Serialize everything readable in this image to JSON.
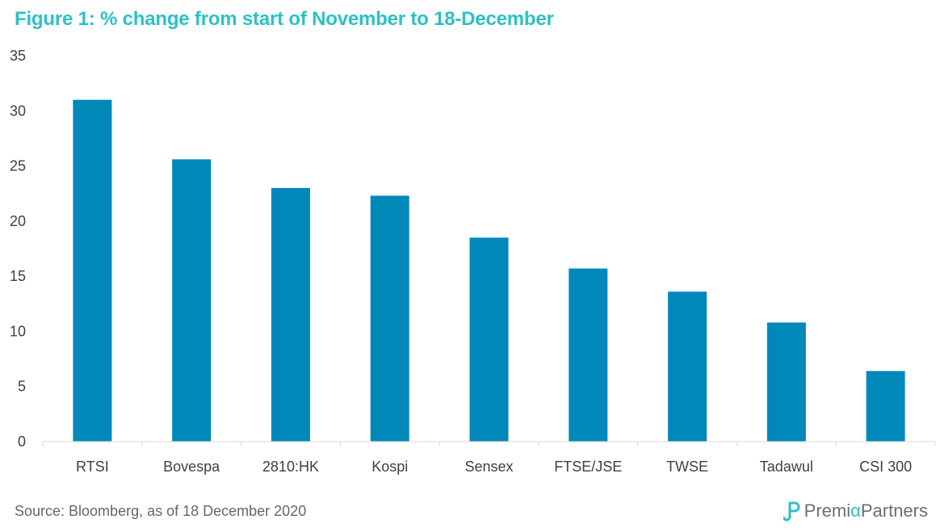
{
  "chart_data": {
    "type": "bar",
    "title": "Figure 1: % change from start of November to 18-December",
    "categories": [
      "RTSI",
      "Bovespa",
      "2810:HK",
      "Kospi",
      "Sensex",
      "FTSE/JSE",
      "TWSE",
      "Tadawul",
      "CSI 300"
    ],
    "values": [
      31.0,
      25.6,
      23.0,
      22.3,
      18.5,
      15.7,
      13.6,
      10.8,
      6.4
    ],
    "ylim": [
      0,
      35
    ],
    "yticks": [
      0,
      5,
      10,
      15,
      20,
      25,
      30,
      35
    ],
    "xlabel": "",
    "ylabel": "",
    "grid": false,
    "bar_color": "#0088b9"
  },
  "source": "Source: Bloomberg, as of 18 December 2020",
  "logo": {
    "text_before": "Premi",
    "text_alpha": "α",
    "text_after": "Partners",
    "icon": "premia-logo-icon",
    "accent_color": "#2cc1c6"
  }
}
